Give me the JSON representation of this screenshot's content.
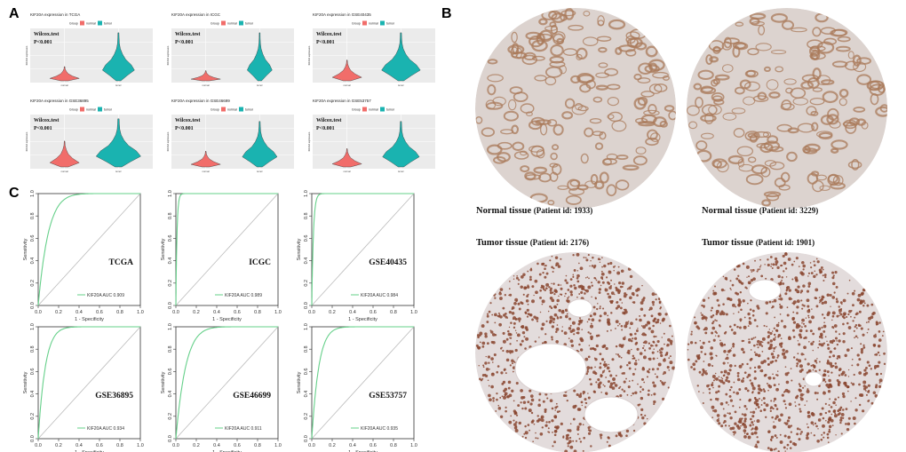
{
  "panel_labels": {
    "a": "A",
    "b": "B",
    "c": "C"
  },
  "colors": {
    "normal": "#f16d6a",
    "tumor": "#1ab3b0",
    "roc_line": "#66d08a",
    "diagonal": "#bbbbbb",
    "plot_bg": "#ebebeb",
    "grid": "#ffffff",
    "tissue_bg": "#dcd3cf",
    "normal_stain": "#a97a5a",
    "tumor_stain": "#8a4630",
    "tumor_bg": "#e3dcdc"
  },
  "violin_common": {
    "legend_title": "Group",
    "legend_labels": [
      "normal",
      "tumor"
    ],
    "test": "Wilcox.test",
    "pvalue": "P<0.001",
    "ylabel": "KIF20A expression"
  },
  "chart_data": [
    {
      "type": "violin",
      "title": "KIF20A expression in TCGA",
      "groups": [
        "normal",
        "tumor"
      ],
      "normal_level": 0.12,
      "tumor_level": 0.38,
      "tumor_max": 0.95
    },
    {
      "type": "violin",
      "title": "KIF20A expression in ICGC",
      "groups": [
        "normal",
        "tumor"
      ],
      "normal_level": 0.04,
      "tumor_level": 0.2,
      "tumor_max": 0.95
    },
    {
      "type": "violin",
      "title": "KIF20A expression in GSE40435",
      "groups": [
        "normal",
        "tumor"
      ],
      "normal_level": 0.25,
      "tumor_level": 0.55,
      "tumor_max": 0.95
    },
    {
      "type": "violin",
      "title": "KIF20A expression in GSE36895",
      "groups": [
        "normal",
        "tumor"
      ],
      "normal_level": 0.35,
      "tumor_level": 0.7,
      "tumor_max": 0.95
    },
    {
      "type": "violin",
      "title": "KIF20A expression in GSE46699",
      "groups": [
        "normal",
        "tumor"
      ],
      "normal_level": 0.15,
      "tumor_level": 0.45,
      "tumor_max": 0.9
    },
    {
      "type": "violin",
      "title": "KIF20A expression in GSE53757",
      "groups": [
        "normal",
        "tumor"
      ],
      "normal_level": 0.2,
      "tumor_level": 0.5,
      "tumor_max": 0.9
    },
    {
      "type": "roc",
      "dataset": "TCGA",
      "auc_label": "KIF20A AUC 0.909",
      "auc": 0.909,
      "xlabel": "1 - Specificity",
      "ylabel": "Sensitivity",
      "xlim": [
        0,
        1
      ],
      "ylim": [
        0,
        1
      ],
      "ticks": [
        "0.0",
        "0.2",
        "0.4",
        "0.6",
        "0.8",
        "1.0"
      ]
    },
    {
      "type": "roc",
      "dataset": "ICGC",
      "auc_label": "KIF20A AUC 0.989",
      "auc": 0.989,
      "xlabel": "1 - Specificity",
      "ylabel": "Sensitivity",
      "xlim": [
        0,
        1
      ],
      "ylim": [
        0,
        1
      ],
      "ticks": [
        "0.0",
        "0.2",
        "0.4",
        "0.6",
        "0.8",
        "1.0"
      ]
    },
    {
      "type": "roc",
      "dataset": "GSE40435",
      "auc_label": "KIF20A AUC 0.984",
      "auc": 0.984,
      "xlabel": "1 - Specificity",
      "ylabel": "Sensitivity",
      "xlim": [
        0,
        1
      ],
      "ylim": [
        0,
        1
      ],
      "ticks": [
        "0.0",
        "0.2",
        "0.4",
        "0.6",
        "0.8",
        "1.0"
      ]
    },
    {
      "type": "roc",
      "dataset": "GSE36895",
      "auc_label": "KIF20A AUC 0.934",
      "auc": 0.934,
      "xlabel": "1 - Specificity",
      "ylabel": "Sensitivity",
      "xlim": [
        0,
        1
      ],
      "ylim": [
        0,
        1
      ],
      "ticks": [
        "0.0",
        "0.2",
        "0.4",
        "0.6",
        "0.8",
        "1.0"
      ]
    },
    {
      "type": "roc",
      "dataset": "GSE46699",
      "auc_label": "KIF20A AUC 0.911",
      "auc": 0.911,
      "xlabel": "1 - Specificity",
      "ylabel": "Sensitivity",
      "xlim": [
        0,
        1
      ],
      "ylim": [
        0,
        1
      ],
      "ticks": [
        "0.0",
        "0.2",
        "0.4",
        "0.6",
        "0.8",
        "1.0"
      ]
    },
    {
      "type": "roc",
      "dataset": "GSE53757",
      "auc_label": "KIF20A AUC 0.935",
      "auc": 0.935,
      "xlabel": "1 - Specificity",
      "ylabel": "Sensitivity",
      "xlim": [
        0,
        1
      ],
      "ylim": [
        0,
        1
      ],
      "ticks": [
        "0.0",
        "0.2",
        "0.4",
        "0.6",
        "0.8",
        "1.0"
      ]
    }
  ],
  "tissues": [
    {
      "kind": "normal",
      "label": "Normal tissue",
      "patient": "(Patient id: 1933)"
    },
    {
      "kind": "normal",
      "label": "Normal tissue",
      "patient": "(Patient id: 3229)"
    },
    {
      "kind": "tumor",
      "label": "Tumor tissue",
      "patient": "(Patient id: 2176)"
    },
    {
      "kind": "tumor",
      "label": "Tumor tissue",
      "patient": "(Patient id: 1901)"
    }
  ]
}
